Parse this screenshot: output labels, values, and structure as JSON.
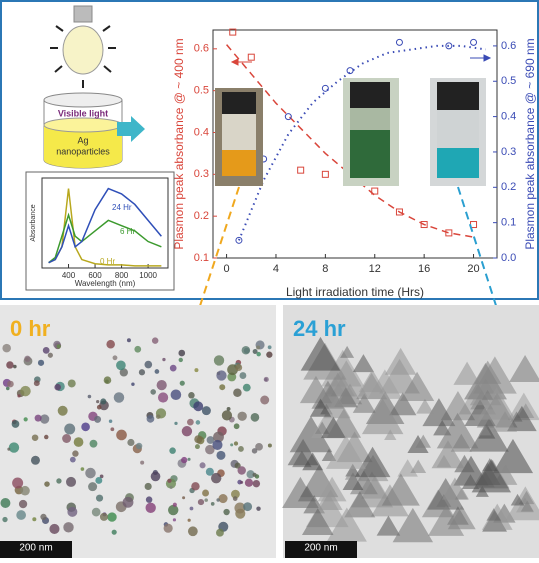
{
  "chart_data": [
    {
      "type": "scatter",
      "xlabel": "Light irradiation time (Hrs)",
      "ylabel": "Plasmon peak absorbance @ ~ 400 nm",
      "y2label": "Plasmon peak absorbance @ ~ 690 nm",
      "xlim": [
        -1.1,
        21.9
      ],
      "xticks": [
        0,
        4,
        8,
        12,
        16,
        20
      ],
      "ylim": [
        0.1,
        0.645
      ],
      "yticks": [
        0.1,
        0.2,
        0.3,
        0.4,
        0.5,
        0.6
      ],
      "y2lim": [
        0,
        0.645
      ],
      "y2ticks": [
        {
          "value": 0,
          "label": "0.0"
        },
        0.1,
        0.2,
        0.3,
        0.4,
        0.5,
        0.6
      ],
      "series": [
        {
          "color": "#d9463b",
          "marker": "square",
          "x": [
            0.5,
            2,
            6,
            8,
            12,
            14,
            16,
            18,
            20
          ],
          "values": [
            0.64,
            0.58,
            0.31,
            0.3,
            0.26,
            0.21,
            0.18,
            0.16,
            0.18
          ]
        },
        {
          "color": "#d9463b",
          "line": "dashed",
          "x": [
            0,
            2,
            4,
            6,
            8,
            10,
            12,
            14,
            16,
            18,
            20
          ],
          "values": [
            0.61,
            0.54,
            0.47,
            0.41,
            0.35,
            0.3,
            0.25,
            0.21,
            0.18,
            0.16,
            0.15
          ]
        },
        {
          "color": "#3a4bb5",
          "marker": "circle",
          "axis": "y2",
          "x": [
            1,
            3,
            5,
            8,
            10,
            14,
            18,
            20
          ],
          "values": [
            0.05,
            0.28,
            0.4,
            0.48,
            0.53,
            0.61,
            0.6,
            0.61
          ]
        },
        {
          "color": "#3a4bb5",
          "line": "dotted",
          "axis": "y2",
          "x": [
            1,
            3,
            5,
            7,
            9,
            11,
            13,
            15,
            17,
            19,
            21
          ],
          "values": [
            0.05,
            0.22,
            0.35,
            0.44,
            0.5,
            0.55,
            0.58,
            0.59,
            0.6,
            0.6,
            0.59
          ]
        }
      ]
    },
    {
      "type": "line",
      "xlabel": "Wavelength (nm)",
      "ylabel": "Absorbance",
      "xlim": [
        200,
        1150
      ],
      "xticks": [
        400,
        600,
        800,
        1000
      ],
      "ylim": [
        0,
        0.85
      ],
      "x": [
        250,
        300,
        350,
        400,
        450,
        500,
        600,
        700,
        800,
        900,
        1000,
        1100
      ],
      "series": [
        {
          "name": "0 Hr",
          "color": "#b8a81e",
          "values": [
            0.05,
            0.08,
            0.2,
            0.75,
            0.2,
            0.08,
            0.04,
            0.03,
            0.03,
            0.02,
            0.02,
            0.02
          ]
        },
        {
          "name": "6 Hr",
          "color": "#3c9a2e",
          "values": [
            0.05,
            0.1,
            0.3,
            0.5,
            0.3,
            0.25,
            0.35,
            0.45,
            0.4,
            0.35,
            0.25,
            0.2
          ]
        },
        {
          "name": "24 Hr",
          "color": "#2f4fb8",
          "values": [
            0.05,
            0.08,
            0.2,
            0.4,
            0.2,
            0.25,
            0.55,
            0.75,
            0.7,
            0.6,
            0.45,
            0.3
          ]
        }
      ]
    }
  ],
  "illustration": {
    "light_label": "Visible light",
    "sample_label": [
      "Ag",
      "nanoparticles"
    ]
  },
  "micrographs": [
    {
      "label": "0 hr",
      "scale_bar": "200 nm"
    },
    {
      "label": "24 hr",
      "scale_bar": "200 nm"
    }
  ]
}
